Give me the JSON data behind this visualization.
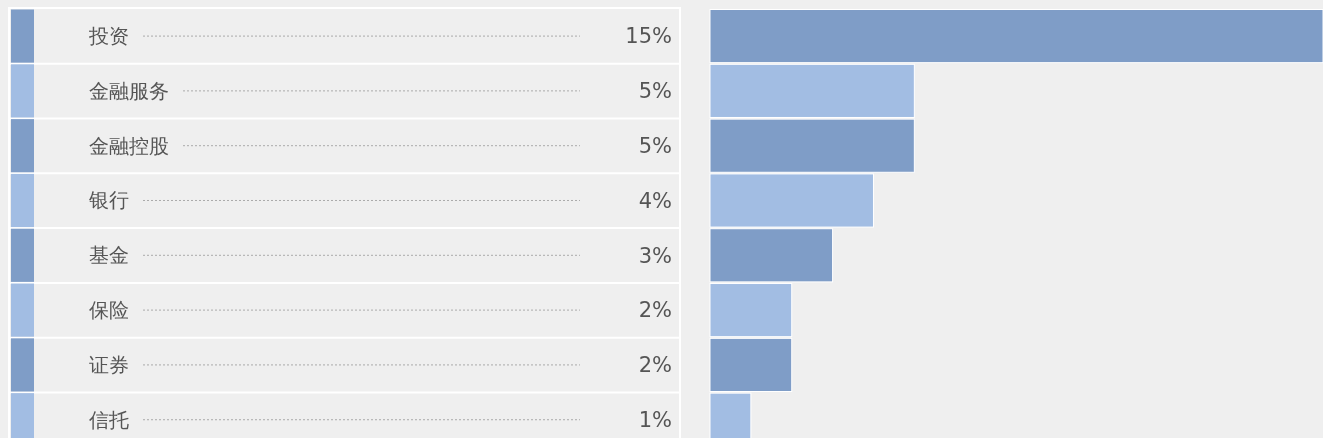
{
  "chart_data": {
    "type": "bar",
    "orientation": "horizontal",
    "categories": [
      "投资",
      "金融服务",
      "金融控股",
      "银行",
      "基金",
      "保险",
      "证券",
      "信托"
    ],
    "values": [
      15,
      5,
      5,
      4,
      3,
      2,
      2,
      1
    ],
    "value_labels": [
      "15%",
      "5%",
      "5%",
      "4%",
      "3%",
      "2%",
      "2%",
      "1%"
    ],
    "colors": [
      "#7f9dc7",
      "#a2bde3",
      "#7f9dc7",
      "#a2bde3",
      "#7f9dc7",
      "#a2bde3",
      "#7f9dc7",
      "#a2bde3"
    ],
    "xlim": [
      0,
      15
    ],
    "tick_labels": false
  }
}
